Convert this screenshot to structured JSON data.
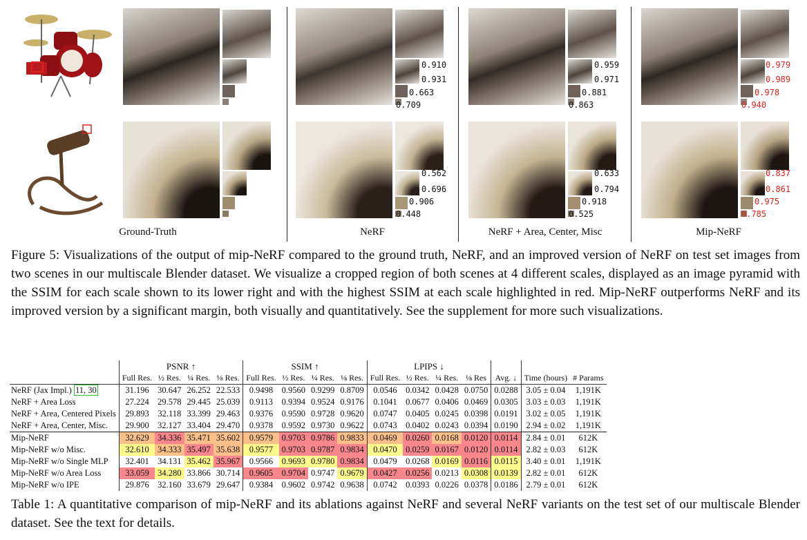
{
  "figure": {
    "panels": [
      {
        "name": "Ground-Truth"
      },
      {
        "name": "NeRF",
        "ssim_top": [
          {
            "v": "0.910",
            "best": false
          },
          {
            "v": "0.931",
            "best": false
          },
          {
            "v": "0.663",
            "best": false
          },
          {
            "v": "0.709",
            "best": false
          }
        ],
        "ssim_bottom": [
          {
            "v": "0.562",
            "best": false
          },
          {
            "v": "0.696",
            "best": false
          },
          {
            "v": "0.906",
            "best": false
          },
          {
            "v": "0.448",
            "best": false
          }
        ]
      },
      {
        "name": "NeRF + Area, Center, Misc",
        "ssim_top": [
          {
            "v": "0.959",
            "best": false
          },
          {
            "v": "0.971",
            "best": false
          },
          {
            "v": "0.881",
            "best": false
          },
          {
            "v": "0.863",
            "best": false
          }
        ],
        "ssim_bottom": [
          {
            "v": "0.633",
            "best": false
          },
          {
            "v": "0.794",
            "best": false
          },
          {
            "v": "0.918",
            "best": false
          },
          {
            "v": "0.525",
            "best": false
          }
        ]
      },
      {
        "name": "Mip-NeRF",
        "ssim_top": [
          {
            "v": "0.979",
            "best": true
          },
          {
            "v": "0.989",
            "best": true
          },
          {
            "v": "0.978",
            "best": true
          },
          {
            "v": "0.940",
            "best": true
          }
        ],
        "ssim_bottom": [
          {
            "v": "0.837",
            "best": true
          },
          {
            "v": "0.861",
            "best": true
          },
          {
            "v": "0.975",
            "best": true
          },
          {
            "v": "0.785",
            "best": true
          }
        ]
      }
    ],
    "caption": "Figure 5: Visualizations of the output of mip-NeRF compared to the ground truth, NeRF, and an improved version of NeRF on test set images from two scenes in our multiscale Blender dataset. We visualize a cropped region of both scenes at 4 different scales, displayed as an image pyramid with the SSIM for each scale shown to its lower right and with the highest SSIM at each scale highlighted in red. Mip-NeRF outperforms NeRF and its improved version by a significant margin, both visually and quantitatively. See the supplement for more such visualizations."
  },
  "table": {
    "groups": {
      "psnr": "PSNR ↑",
      "ssim": "SSIM ↑",
      "lpips": "LPIPS ↓"
    },
    "subheaders": [
      "Full Res.",
      "½ Res.",
      "¼ Res.",
      "⅛ Res.",
      "Full Res.",
      "½ Res.",
      "¼ Res.",
      "⅛ Res.",
      "Full Res.",
      "½ Res.",
      "¼ Res.",
      "⅛ Res",
      "Avg. ↓",
      "Time (hours)",
      "# Params"
    ],
    "first_row_label": "NeRF (Jax Impl.)",
    "first_row_cite": "11, 30",
    "rows": [
      {
        "label": "",
        "cells": [
          "31.196",
          "30.647",
          "26.252",
          "22.533",
          "0.9498",
          "0.9560",
          "0.9299",
          "0.8709",
          "0.0546",
          "0.0342",
          "0.0428",
          "0.0750",
          "0.0288",
          "3.05 ± 0.04",
          "1,191K"
        ],
        "hl": [
          "",
          "",
          "",
          "",
          "",
          "",
          "",
          "",
          "",
          "",
          "",
          "",
          "",
          "",
          ""
        ]
      },
      {
        "label": "NeRF + Area Loss",
        "cells": [
          "27.224",
          "29.578",
          "29.445",
          "25.039",
          "0.9113",
          "0.9394",
          "0.9524",
          "0.9176",
          "0.1041",
          "0.0677",
          "0.0406",
          "0.0469",
          "0.0305",
          "3.03 ± 0.03",
          "1,191K"
        ],
        "hl": [
          "",
          "",
          "",
          "",
          "",
          "",
          "",
          "",
          "",
          "",
          "",
          "",
          "",
          "",
          ""
        ]
      },
      {
        "label": "NeRF + Area, Centered Pixels",
        "cells": [
          "29.893",
          "32.118",
          "33.399",
          "29.463",
          "0.9376",
          "0.9590",
          "0.9728",
          "0.9620",
          "0.0747",
          "0.0405",
          "0.0245",
          "0.0398",
          "0.0191",
          "3.02 ± 0.05",
          "1,191K"
        ],
        "hl": [
          "",
          "",
          "",
          "",
          "",
          "",
          "",
          "",
          "",
          "",
          "",
          "",
          "",
          "",
          ""
        ]
      },
      {
        "label": "NeRF + Area, Center, Misc.",
        "cells": [
          "29.900",
          "32.127",
          "33.404",
          "29.470",
          "0.9378",
          "0.9592",
          "0.9730",
          "0.9622",
          "0.0743",
          "0.0402",
          "0.0243",
          "0.0394",
          "0.0190",
          "2.94 ± 0.02",
          "1,191K"
        ],
        "hl": [
          "",
          "",
          "",
          "",
          "",
          "",
          "",
          "",
          "",
          "",
          "",
          "",
          "",
          "",
          ""
        ]
      },
      {
        "label": "Mip-NeRF",
        "cells": [
          "32.629",
          "34.336",
          "35.471",
          "35.602",
          "0.9579",
          "0.9703",
          "0.9786",
          "0.9833",
          "0.0469",
          "0.0260",
          "0.0168",
          "0.0120",
          "0.0114",
          "2.84 ± 0.01",
          "612K"
        ],
        "hl": [
          "or1",
          "red1",
          "or1",
          "or1",
          "or1",
          "red1",
          "red1",
          "or1",
          "or1",
          "red1",
          "or1",
          "red1",
          "red1",
          "",
          ""
        ]
      },
      {
        "label": "Mip-NeRF w/o Misc.",
        "cells": [
          "32.610",
          "34.333",
          "35.497",
          "35.638",
          "0.9577",
          "0.9703",
          "0.9787",
          "0.9834",
          "0.0470",
          "0.0259",
          "0.0167",
          "0.0120",
          "0.0114",
          "2.82 ± 0.03",
          "612K"
        ],
        "hl": [
          "ye1",
          "or1",
          "red1",
          "or1",
          "ye1",
          "red1",
          "red1",
          "red1",
          "ye1",
          "red1",
          "red1",
          "red1",
          "red1",
          "",
          ""
        ]
      },
      {
        "label": "Mip-NeRF w/o Single MLP",
        "cells": [
          "32.401",
          "34.131",
          "35.462",
          "35.967",
          "0.9566",
          "0.9693",
          "0.9780",
          "0.9834",
          "0.0479",
          "0.0268",
          "0.0169",
          "0.0116",
          "0.0115",
          "3.40 ± 0.01",
          "1,191K"
        ],
        "hl": [
          "",
          "",
          "ye1",
          "red1",
          "",
          "ye1",
          "ye1",
          "red1",
          "",
          "",
          "ye1",
          "red1",
          "ye1",
          "",
          ""
        ]
      },
      {
        "label": "Mip-NeRF w/o Area Loss",
        "cells": [
          "33.059",
          "34.280",
          "33.866",
          "30.714",
          "0.9605",
          "0.9704",
          "0.9747",
          "0.9679",
          "0.0427",
          "0.0256",
          "0.0213",
          "0.0308",
          "0.0139",
          "2.82 ± 0.01",
          "612K"
        ],
        "hl": [
          "red1",
          "ye1",
          "",
          "",
          "red1",
          "red1",
          "",
          "ye1",
          "red1",
          "red1",
          "",
          "ye1",
          "ye1",
          "",
          ""
        ]
      },
      {
        "label": "Mip-NeRF w/o IPE",
        "cells": [
          "29.876",
          "32.160",
          "33.679",
          "29.647",
          "0.9384",
          "0.9602",
          "0.9742",
          "0.9638",
          "0.0742",
          "0.0393",
          "0.0226",
          "0.0378",
          "0.0186",
          "2.79 ± 0.01",
          "612K"
        ],
        "hl": [
          "",
          "",
          "",
          "",
          "",
          "",
          "",
          "",
          "",
          "",
          "",
          "",
          "",
          "",
          ""
        ]
      }
    ],
    "caption": "Table 1: A quantitative comparison of mip-NeRF and its ablations against NeRF and several NeRF variants on the test set of our multiscale Blender dataset. See the text for details."
  }
}
